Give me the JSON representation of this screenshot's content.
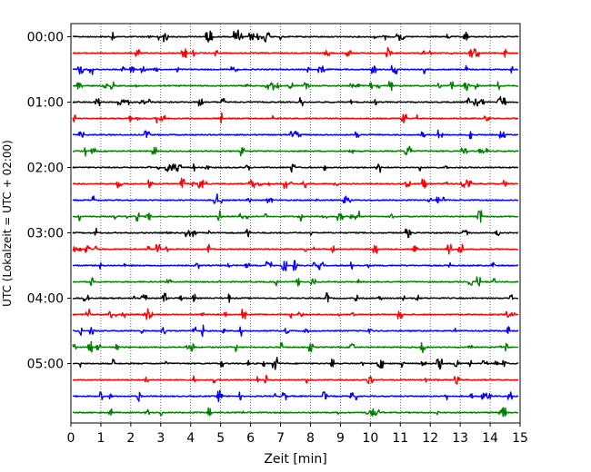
{
  "chart_data": {
    "type": "line",
    "title": "",
    "xlabel": "Zeit  [min]",
    "ylabel": "UTC (Lokalzeit = UTC + 02:00)",
    "xlim": [
      0,
      15
    ],
    "x_ticks": [
      "0",
      "1",
      "2",
      "3",
      "4",
      "5",
      "6",
      "7",
      "8",
      "9",
      "10",
      "11",
      "12",
      "13",
      "14",
      "15"
    ],
    "y_ticks": [
      "00:00",
      "01:00",
      "02:00",
      "03:00",
      "04:00",
      "05:00"
    ],
    "grid": "vertical dotted at each minute",
    "trace_colors": [
      "#000000",
      "#ff0000",
      "#0000ff",
      "#008000"
    ],
    "trace_count": 24,
    "minutes_per_trace": 15,
    "traces_per_hour": 4
  }
}
